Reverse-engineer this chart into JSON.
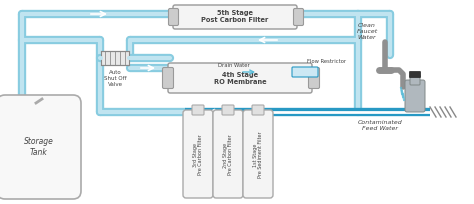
{
  "bg_color": "#ffffff",
  "light_blue": "#c8e8f4",
  "mid_blue": "#5bbcd8",
  "dark_blue": "#2899c4",
  "tube_color": "#c0e4f0",
  "tube_outline": "#88cce0",
  "filter_body": "#f0f0f0",
  "filter_outline": "#aaaaaa",
  "membrane_body": "#f4f4f4",
  "membrane_outline": "#999999",
  "tank_color": "#f8f8f8",
  "tank_outline": "#aaaaaa",
  "text_color": "#444444",
  "label_5th": "5th Stage\nPost Carbon Filter",
  "label_4th": "4th Stage\nRO Membrane",
  "label_3rd": "3rd Stage\nPre Carbon Filter",
  "label_2nd": "2nd Stage\nPre Carbon Filter",
  "label_1st": "1st Stage\nPre Sediment Filter",
  "label_auto": "Auto\nShut Off\nValve",
  "label_drain": "Drain Water",
  "label_flow": "Flow Restrictor",
  "label_clean": "Clean\nFaucet\nWater",
  "label_contaminated": "Contaminated\nFeed Water",
  "label_storage": "Storage\nTank",
  "arrow_color": "#ffffff",
  "pipe_lw": 5,
  "pipe_inner_lw": 2
}
